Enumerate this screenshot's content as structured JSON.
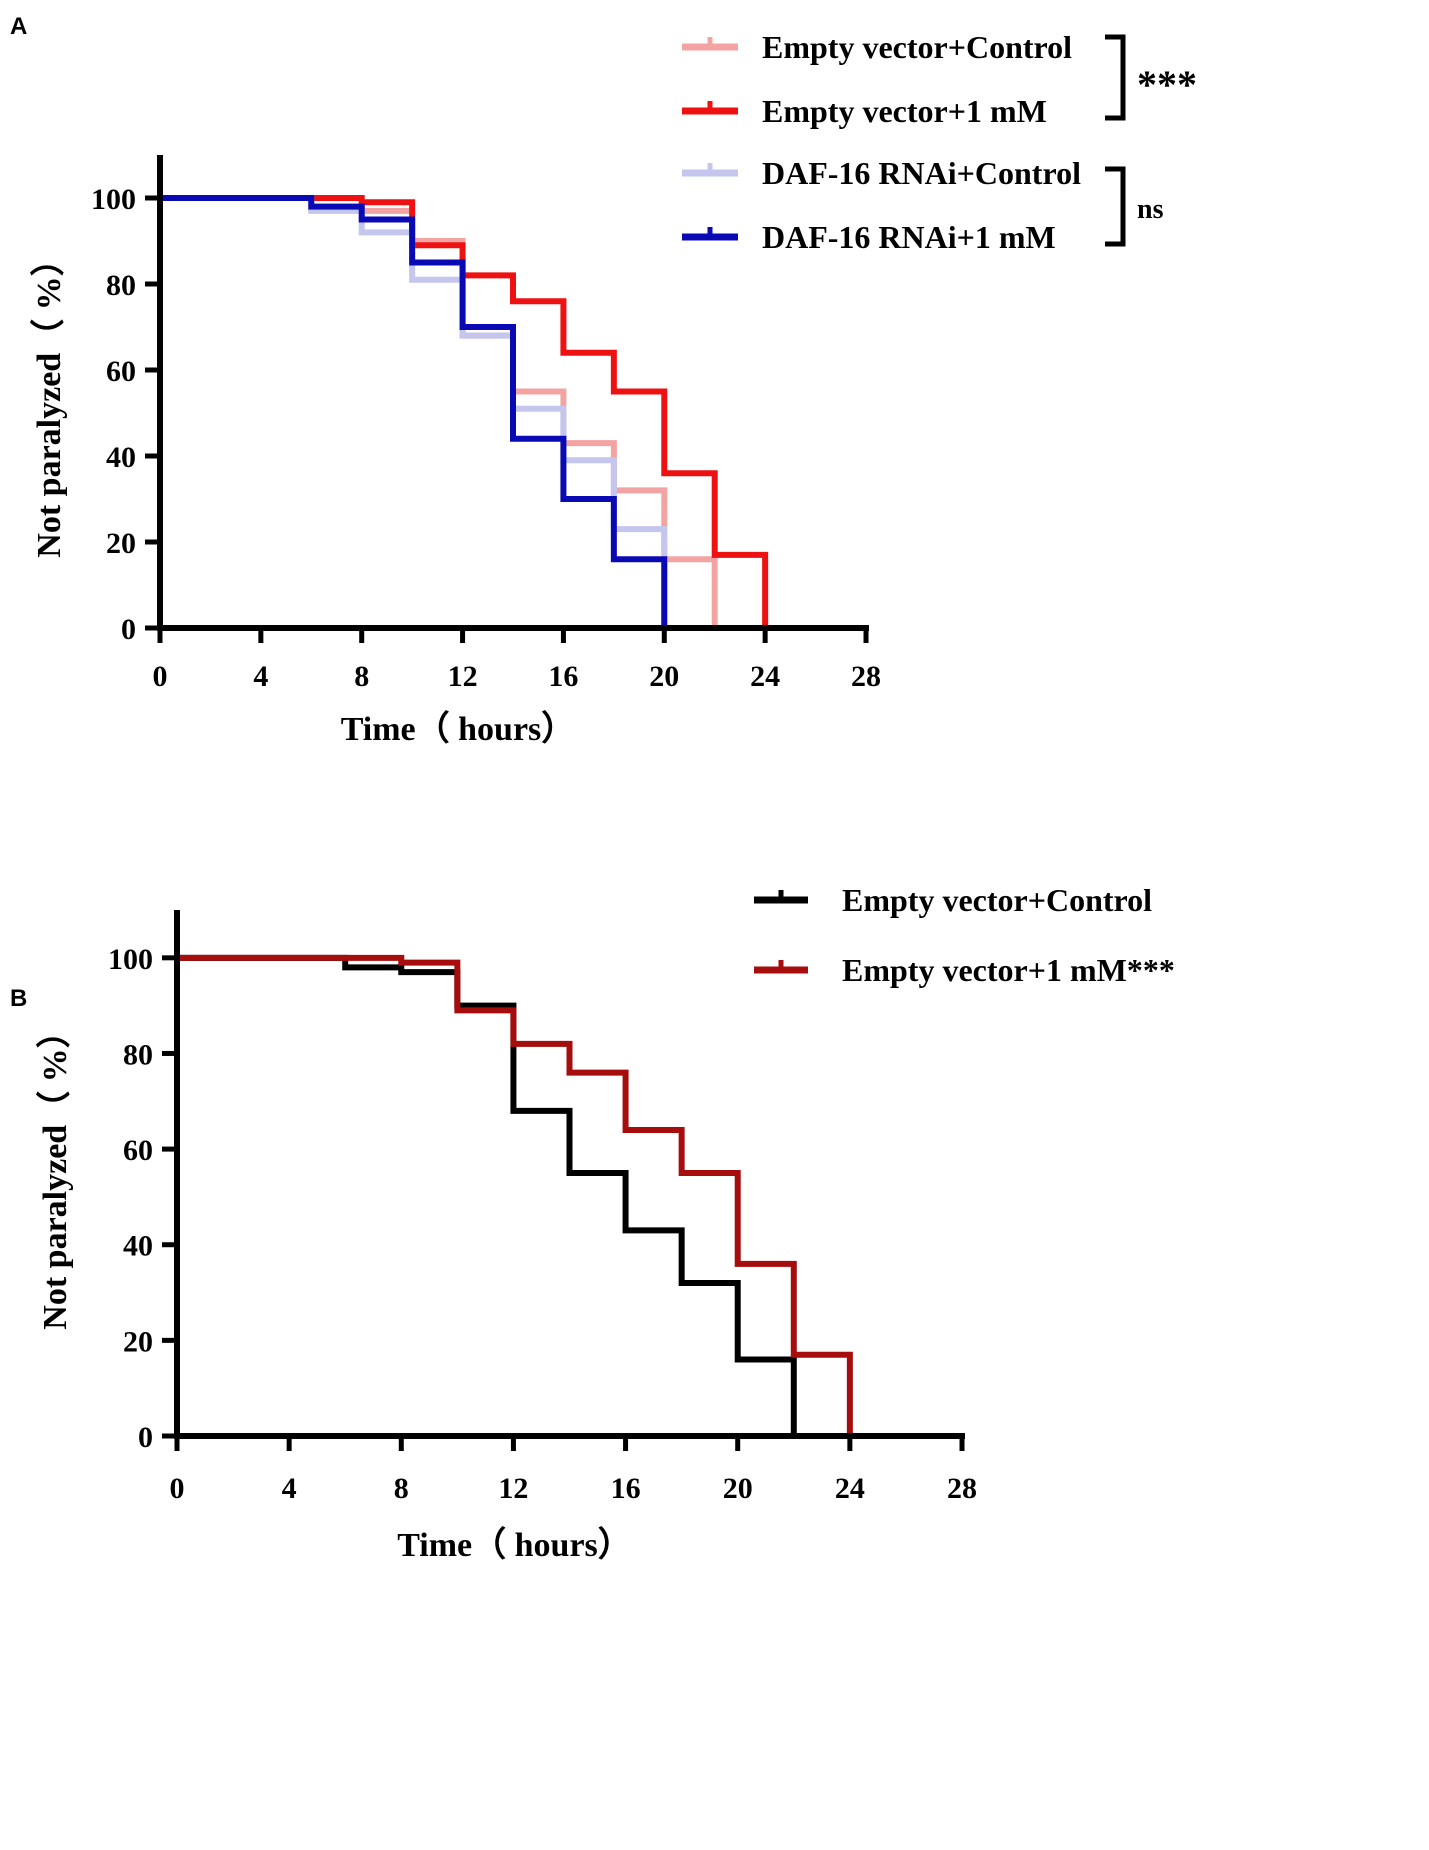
{
  "chart_data": [
    {
      "panel": "A",
      "type": "line",
      "step": true,
      "xlabel": "Time（ hours）",
      "ylabel": "Not paralyzed（ %）",
      "xlim": [
        0,
        28
      ],
      "ylim": [
        0,
        110
      ],
      "xticks": [
        0,
        4,
        8,
        12,
        16,
        20,
        24,
        28
      ],
      "yticks": [
        0,
        20,
        40,
        60,
        80,
        100
      ],
      "legend_position": "top-right",
      "series": [
        {
          "name": "Empty vector+Control",
          "color": "#f4a3a3",
          "x": [
            0,
            6,
            8,
            10,
            12,
            14,
            16,
            18,
            20,
            22
          ],
          "y": [
            100,
            98,
            97,
            90,
            68,
            55,
            43,
            32,
            16,
            0
          ]
        },
        {
          "name": "Empty vector+1 mM",
          "color": "#ee1111",
          "x": [
            0,
            6,
            8,
            10,
            12,
            14,
            16,
            18,
            20,
            22,
            24
          ],
          "y": [
            100,
            100,
            99,
            89,
            82,
            76,
            64,
            55,
            36,
            17,
            0
          ]
        },
        {
          "name": "DAF-16 RNAi+Control",
          "color": "#c4c6ee",
          "x": [
            0,
            6,
            8,
            10,
            12,
            14,
            16,
            18,
            20
          ],
          "y": [
            100,
            97,
            92,
            81,
            68,
            51,
            39,
            23,
            0
          ]
        },
        {
          "name": "DAF-16 RNAi+1 mM",
          "color": "#0a0ab4",
          "x": [
            0,
            6,
            8,
            10,
            12,
            14,
            16,
            18,
            20
          ],
          "y": [
            100,
            98,
            95,
            85,
            70,
            44,
            30,
            16,
            0
          ]
        }
      ],
      "significance": [
        {
          "label": "***",
          "groups": [
            "Empty vector+Control",
            "Empty vector+1 mM"
          ]
        },
        {
          "label": "ns",
          "groups": [
            "DAF-16 RNAi+Control",
            "DAF-16 RNAi+1 mM"
          ]
        }
      ]
    },
    {
      "panel": "B",
      "type": "line",
      "step": true,
      "xlabel": "Time（ hours）",
      "ylabel": "Not paralyzed（ %）",
      "xlim": [
        0,
        28
      ],
      "ylim": [
        0,
        110
      ],
      "xticks": [
        0,
        4,
        8,
        12,
        16,
        20,
        24,
        28
      ],
      "yticks": [
        0,
        20,
        40,
        60,
        80,
        100
      ],
      "legend_position": "top-right",
      "series": [
        {
          "name": "Empty vector+Control",
          "color": "#000000",
          "x": [
            0,
            6,
            8,
            10,
            12,
            14,
            16,
            18,
            20,
            22
          ],
          "y": [
            100,
            98,
            97,
            90,
            68,
            55,
            43,
            32,
            16,
            0
          ]
        },
        {
          "name": "Empty vector+1 mM***",
          "color": "#a60d0d",
          "x": [
            0,
            6,
            8,
            10,
            12,
            14,
            16,
            18,
            20,
            22,
            24
          ],
          "y": [
            100,
            100,
            99,
            89,
            82,
            76,
            64,
            55,
            36,
            17,
            0
          ]
        }
      ]
    }
  ]
}
